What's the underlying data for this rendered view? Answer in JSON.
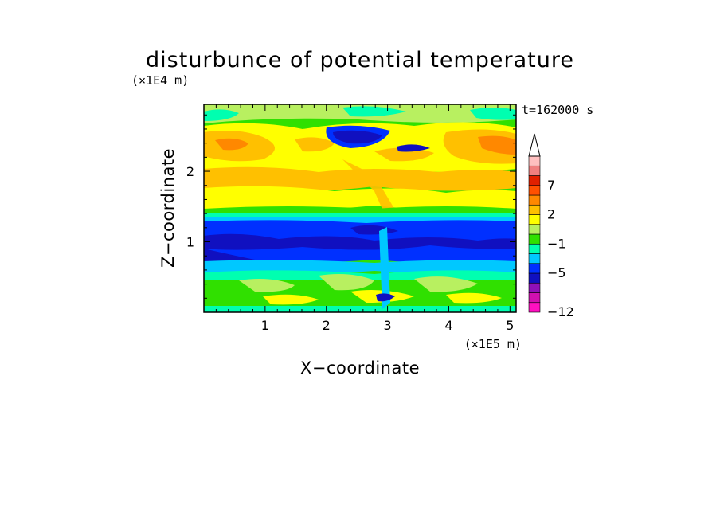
{
  "chart_data": {
    "type": "heatmap",
    "title": "disturbunce of potential temperature",
    "xlabel": "X−coordinate",
    "ylabel": "Z−coordinate",
    "x_unit": "(×1E5 m)",
    "y_unit": "(×1E4 m)",
    "time_label": "t=162000 s",
    "xlim": [
      0,
      5.1
    ],
    "ylim": [
      0,
      2.95
    ],
    "x_ticks": [
      1,
      2,
      3,
      4,
      5
    ],
    "y_ticks": [
      1,
      2
    ],
    "x_tick_labels": [
      "1",
      "2",
      "3",
      "4",
      "5"
    ],
    "y_tick_labels": [
      "1",
      "2"
    ],
    "colorbar": {
      "levels": [
        -12,
        -10,
        -8,
        -6,
        -5,
        -3,
        -2,
        -1,
        0,
        1,
        2,
        4,
        5,
        7,
        8,
        10,
        12
      ],
      "colors": [
        "#ff10c0",
        "#d010b0",
        "#9010b8",
        "#1010c0",
        "#0030ff",
        "#00c8ff",
        "#00ffb0",
        "#30e000",
        "#b8f060",
        "#ffff00",
        "#ffc000",
        "#ff8800",
        "#ff5000",
        "#e02000",
        "#f08080",
        "#ffc0c0"
      ],
      "extend_top": true,
      "tick_labels": [
        {
          "text": "−12",
          "value": -12
        },
        {
          "text": "−5",
          "value": -5
        },
        {
          "text": "−1",
          "value": -1
        },
        {
          "text": "2",
          "value": 2
        },
        {
          "text": "7",
          "value": 7
        }
      ]
    },
    "layers": [
      {
        "z_range": [
          0.0,
          0.22
        ],
        "dominant": "green/yellow",
        "value_approx": 0.5
      },
      {
        "z_range": [
          0.22,
          0.55
        ],
        "dominant": "yellow/green",
        "value_approx": 1
      },
      {
        "z_range": [
          0.55,
          0.72
        ],
        "dominant": "green/cyan",
        "value_approx": -0.5
      },
      {
        "z_range": [
          0.72,
          1.35
        ],
        "dominant": "blue",
        "value_approx": -4
      },
      {
        "z_range": [
          1.35,
          1.6
        ],
        "dominant": "cyan/green",
        "value_approx": -1
      },
      {
        "z_range": [
          1.6,
          2.05
        ],
        "dominant": "yellow/orange",
        "value_approx": 2
      },
      {
        "z_range": [
          2.05,
          2.6
        ],
        "dominant": "orange/yellow",
        "value_approx": 3
      },
      {
        "z_range": [
          2.6,
          2.95
        ],
        "dominant": "yellow/cyan",
        "value_approx": 1
      }
    ]
  }
}
